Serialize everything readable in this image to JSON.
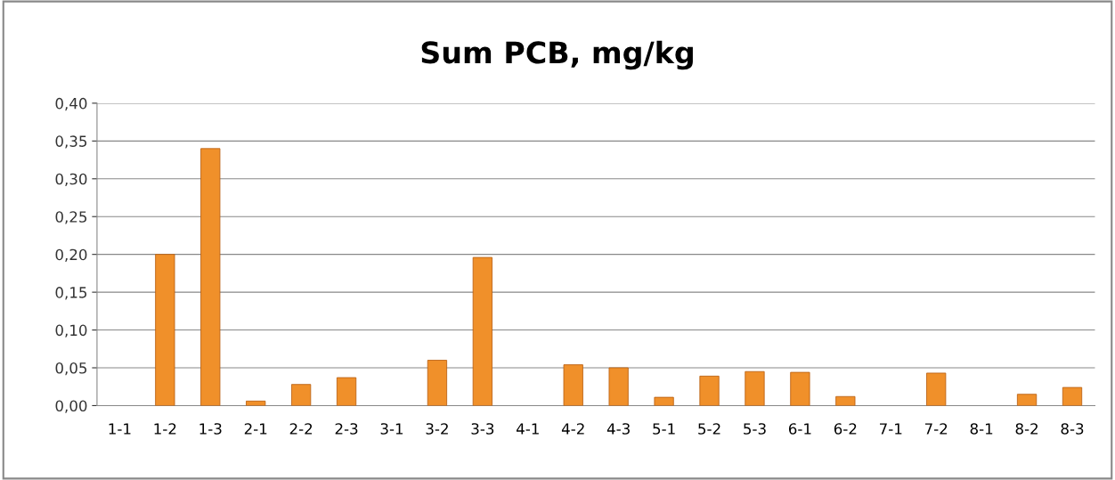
{
  "chart_data": {
    "type": "bar",
    "title": "Sum PCB, mg/kg",
    "categories": [
      "1-1",
      "1-2",
      "1-3",
      "2-1",
      "2-2",
      "2-3",
      "3-1",
      "3-2",
      "3-3",
      "4-1",
      "4-2",
      "4-3",
      "5-1",
      "5-2",
      "5-3",
      "6-1",
      "6-2",
      "7-1",
      "7-2",
      "8-1",
      "8-2",
      "8-3"
    ],
    "values": [
      null,
      0.2,
      0.34,
      0.006,
      0.028,
      0.037,
      null,
      0.06,
      0.196,
      null,
      0.054,
      0.05,
      0.011,
      0.039,
      0.045,
      0.044,
      0.012,
      null,
      0.043,
      null,
      0.015,
      0.024
    ],
    "color": "#f0902a",
    "ylim": [
      0,
      0.4
    ],
    "yticks": [
      {
        "value": 0,
        "label": "0,00"
      },
      {
        "value": 0.05,
        "label": "0,05"
      },
      {
        "value": 0.1,
        "label": "0,10"
      },
      {
        "value": 0.15,
        "label": "0,15"
      },
      {
        "value": 0.2,
        "label": "0,20"
      },
      {
        "value": 0.25,
        "label": "0,25"
      },
      {
        "value": 0.3,
        "label": "0,30"
      },
      {
        "value": 0.35,
        "label": "0,35"
      },
      {
        "value": 0.4,
        "label": "0,40"
      }
    ],
    "grid": "y"
  }
}
